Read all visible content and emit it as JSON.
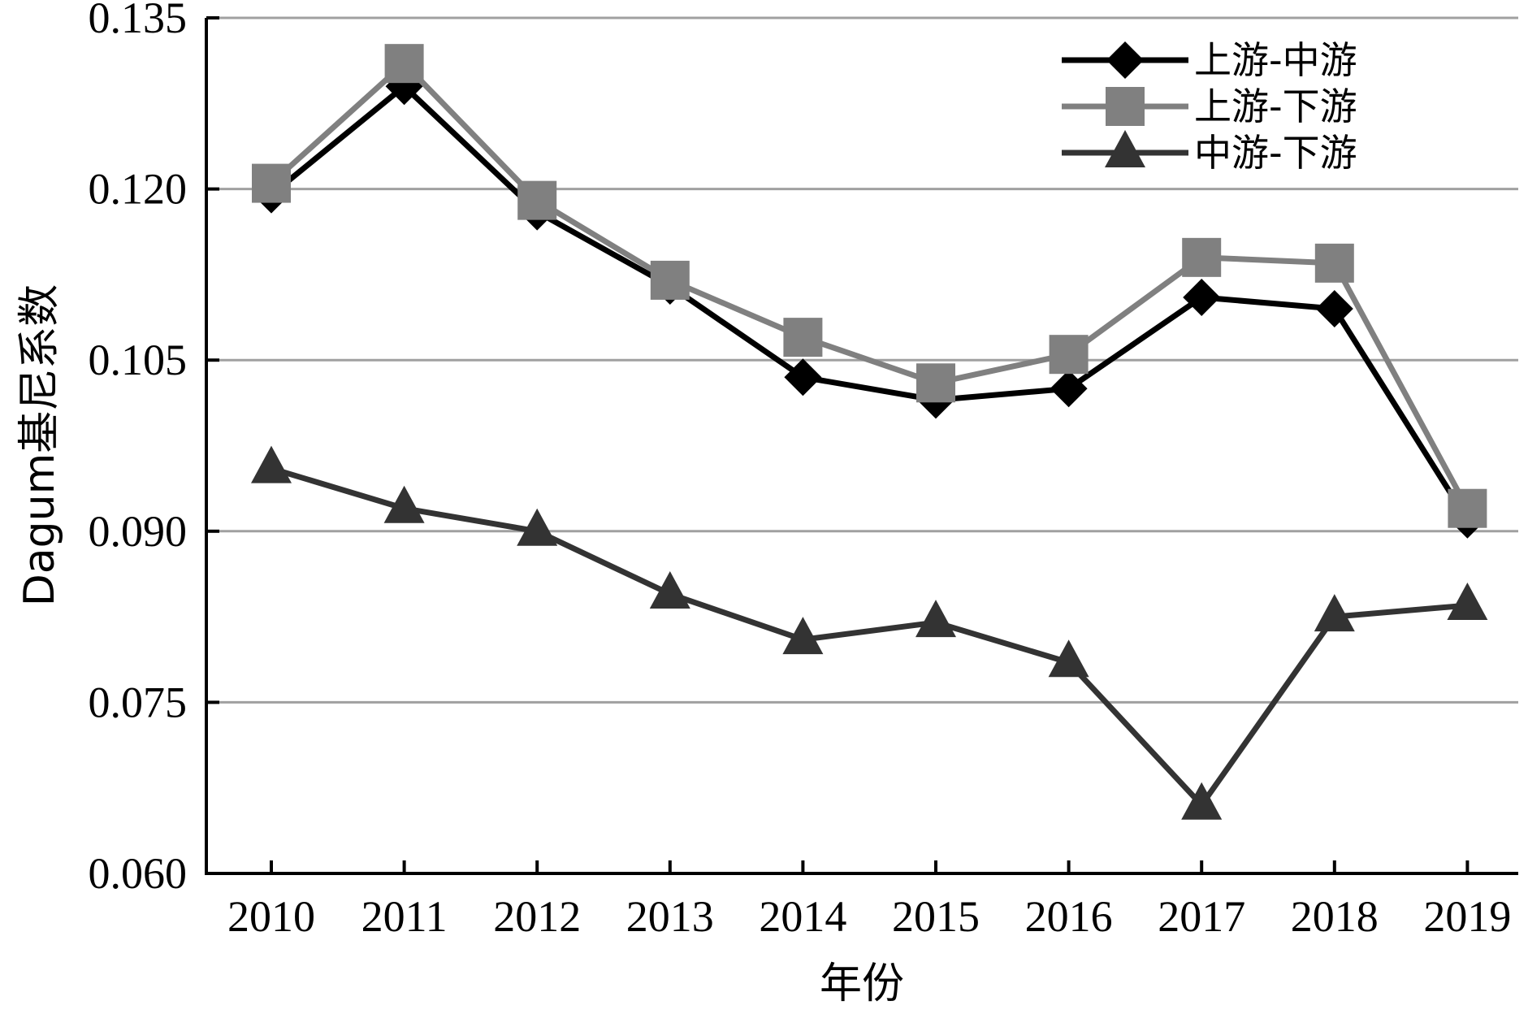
{
  "chart_data": {
    "type": "line",
    "title": "",
    "xlabel": "年份",
    "ylabel": "Dagum基尼系数",
    "categories": [
      "2010",
      "2011",
      "2012",
      "2013",
      "2014",
      "2015",
      "2016",
      "2017",
      "2018",
      "2019"
    ],
    "ylim": [
      0.06,
      0.135
    ],
    "yticks": [
      "0.060",
      "0.075",
      "0.090",
      "0.105",
      "0.120",
      "0.135"
    ],
    "grid": "horizontal",
    "legend_position": "top-right",
    "series": [
      {
        "name": "上游-中游",
        "marker": "diamond",
        "color": "#000000",
        "values": [
          0.1195,
          0.129,
          0.118,
          0.1115,
          0.1035,
          0.1015,
          0.1025,
          0.1105,
          0.1095,
          0.091
        ]
      },
      {
        "name": "上游-下游",
        "marker": "square",
        "color": "#808080",
        "values": [
          0.1205,
          0.131,
          0.119,
          0.112,
          0.107,
          0.103,
          0.1055,
          0.114,
          0.1135,
          0.092
        ]
      },
      {
        "name": "中游-下游",
        "marker": "triangle",
        "color": "#333333",
        "values": [
          0.0955,
          0.092,
          0.09,
          0.0845,
          0.0805,
          0.082,
          0.0785,
          0.066,
          0.0825,
          0.0835
        ]
      }
    ]
  }
}
